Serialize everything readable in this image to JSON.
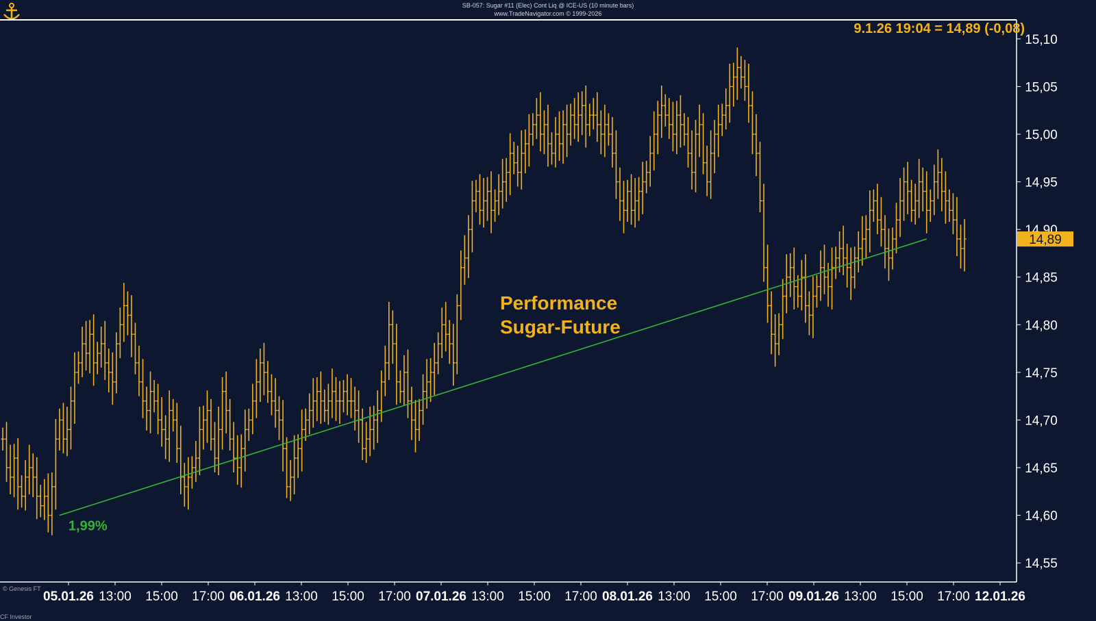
{
  "header": {
    "title": "SB-057: Sugar #11 (Elec) Cont Liq @ ICE-US (10 minute bars)",
    "source": "www.TradeNavigator.com © 1999-2026"
  },
  "last_quote": "9.1.26 19:04 = 14,89 (-0,08)",
  "price_tag": "14,89",
  "annotation": "Performance\nSugar-Future",
  "trend_label": "1,99%",
  "footer_left": "© Genesis FT",
  "footer_left2": "CF Investor",
  "colors": {
    "background": "#0d1730",
    "bars": "#f2b21e",
    "trendline": "#35b23a",
    "axis_text": "#ffffff",
    "accent": "#f2b21e"
  },
  "chart_data": {
    "type": "ohlc",
    "ylim": [
      14.53,
      15.12
    ],
    "y_ticks": [
      "15,10",
      "15,05",
      "15,00",
      "14,95",
      "14,90",
      "14,85",
      "14,80",
      "14,75",
      "14,70",
      "14,65",
      "14,60",
      "14,55"
    ],
    "x_labels": [
      {
        "label": "05.01.26",
        "bold": true
      },
      {
        "label": "13:00",
        "bold": false
      },
      {
        "label": "15:00",
        "bold": false
      },
      {
        "label": "17:00",
        "bold": false
      },
      {
        "label": "06.01.26",
        "bold": true
      },
      {
        "label": "13:00",
        "bold": false
      },
      {
        "label": "15:00",
        "bold": false
      },
      {
        "label": "17:00",
        "bold": false
      },
      {
        "label": "07.01.26",
        "bold": true
      },
      {
        "label": "13:00",
        "bold": false
      },
      {
        "label": "15:00",
        "bold": false
      },
      {
        "label": "17:00",
        "bold": false
      },
      {
        "label": "08.01.26",
        "bold": true
      },
      {
        "label": "13:00",
        "bold": false
      },
      {
        "label": "15:00",
        "bold": false
      },
      {
        "label": "17:00",
        "bold": false
      },
      {
        "label": "09.01.26",
        "bold": true
      },
      {
        "label": "13:00",
        "bold": false
      },
      {
        "label": "15:00",
        "bold": false
      },
      {
        "label": "17:00",
        "bold": false
      },
      {
        "label": "12.01.26",
        "bold": true
      }
    ],
    "bars_per_day": 52,
    "closes": [
      14.68,
      14.65,
      14.64,
      14.66,
      14.63,
      14.62,
      14.64,
      14.65,
      14.64,
      14.62,
      14.61,
      14.62,
      14.6,
      14.63,
      14.68,
      14.7,
      14.68,
      14.69,
      14.72,
      14.75,
      14.76,
      14.78,
      14.77,
      14.79,
      14.76,
      14.77,
      14.78,
      14.76,
      14.75,
      14.74,
      14.78,
      14.8,
      14.82,
      14.81,
      14.79,
      14.76,
      14.74,
      14.72,
      14.71,
      14.73,
      14.72,
      14.7,
      14.69,
      14.68,
      14.71,
      14.7,
      14.67,
      14.64,
      14.63,
      14.64,
      14.65,
      14.66,
      14.69,
      14.7,
      14.71,
      14.68,
      14.66,
      14.69,
      14.73,
      14.71,
      14.68,
      14.66,
      14.65,
      14.67,
      14.69,
      14.7,
      14.72,
      14.74,
      14.76,
      14.75,
      14.73,
      14.72,
      14.71,
      14.7,
      14.67,
      14.63,
      14.64,
      14.66,
      14.67,
      14.69,
      14.7,
      14.71,
      14.72,
      14.73,
      14.72,
      14.71,
      14.72,
      14.73,
      14.72,
      14.72,
      14.73,
      14.72,
      14.72,
      14.71,
      14.7,
      14.67,
      14.68,
      14.69,
      14.7,
      14.71,
      14.74,
      14.76,
      14.8,
      14.78,
      14.74,
      14.73,
      14.75,
      14.72,
      14.7,
      14.69,
      14.71,
      14.73,
      14.74,
      14.75,
      14.76,
      14.78,
      14.8,
      14.79,
      14.78,
      14.76,
      14.82,
      14.86,
      14.87,
      14.9,
      14.93,
      14.94,
      14.92,
      14.93,
      14.94,
      14.92,
      14.93,
      14.94,
      14.95,
      14.96,
      14.98,
      14.97,
      14.96,
      14.98,
      14.99,
      15.0,
      15.01,
      15.02,
      15.0,
      15.01,
      14.99,
      14.98,
      15.0,
      14.99,
      15.01,
      15.0,
      15.02,
      15.01,
      15.02,
      15.03,
      15.01,
      15.02,
      15.02,
      15.01,
      15.0,
      15.01,
      15.0,
      14.98,
      14.95,
      14.93,
      14.92,
      14.94,
      14.92,
      14.93,
      14.94,
      14.95,
      14.96,
      14.98,
      15.0,
      15.02,
      15.03,
      15.02,
      15.01,
      15.0,
      15.02,
      15.01,
      15.0,
      14.98,
      14.96,
      15.0,
      15.01,
      14.97,
      14.95,
      14.98,
      15.0,
      15.01,
      15.02,
      15.03,
      15.05,
      15.06,
      15.07,
      15.06,
      15.05,
      15.03,
      15.0,
      14.98,
      14.93,
      14.86,
      14.82,
      14.79,
      14.78,
      14.8,
      14.83,
      14.85,
      14.86,
      14.84,
      14.83,
      14.85,
      14.82,
      14.81,
      14.83,
      14.84,
      14.86,
      14.85,
      14.84,
      14.86,
      14.87,
      14.88,
      14.87,
      14.86,
      14.85,
      14.87,
      14.88,
      14.89,
      14.9,
      14.92,
      14.93,
      14.91,
      14.9,
      14.88,
      14.87,
      14.89,
      14.91,
      14.93,
      14.95,
      14.94,
      14.92,
      14.93,
      14.95,
      14.94,
      14.92,
      14.93,
      14.95,
      14.96,
      14.94,
      14.93,
      14.92,
      14.91,
      14.89,
      14.88,
      14.89
    ],
    "trendline": {
      "x_start_index": 15,
      "y_start": 14.6,
      "x_end_index": 244,
      "y_end": 14.89
    },
    "last_value": 14.89
  }
}
